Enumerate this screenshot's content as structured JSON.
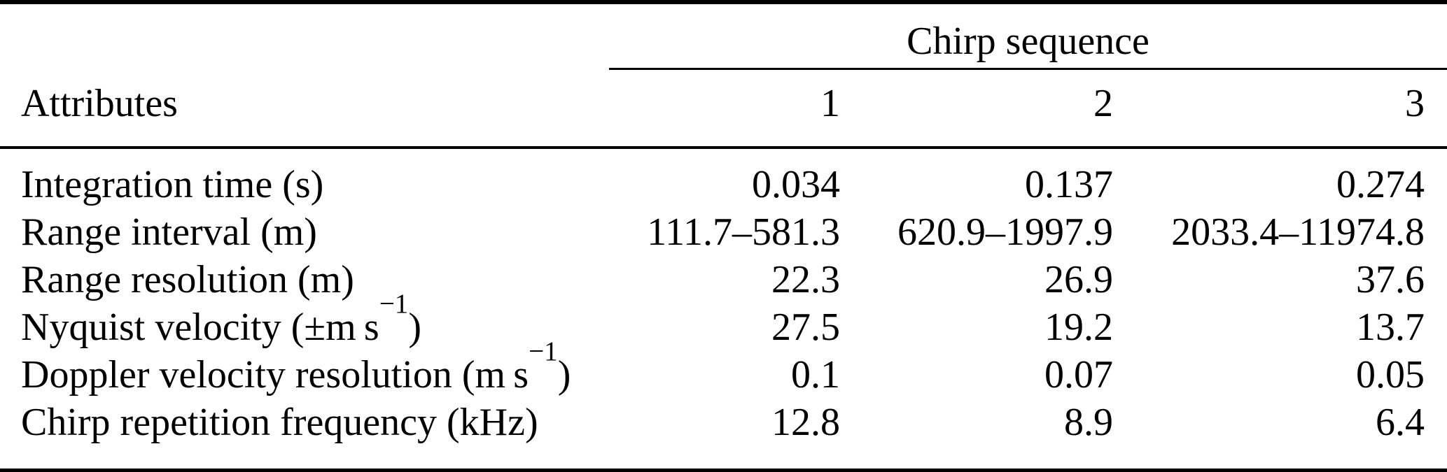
{
  "table": {
    "group_header": "Chirp sequence",
    "corner_header": "Attributes",
    "columns": [
      "1",
      "2",
      "3"
    ],
    "rows": [
      {
        "label_pre": "Integration time (s)",
        "label_sup": "",
        "label_post": "",
        "values": [
          "0.034",
          "0.137",
          "0.274"
        ]
      },
      {
        "label_pre": "Range interval (m)",
        "label_sup": "",
        "label_post": "",
        "values": [
          "111.7–581.3",
          "620.9–1997.9",
          "2033.4–11974.8"
        ]
      },
      {
        "label_pre": "Range resolution (m)",
        "label_sup": "",
        "label_post": "",
        "values": [
          "22.3",
          "26.9",
          "37.6"
        ]
      },
      {
        "label_pre": "Nyquist velocity (±m s",
        "label_sup": "−1",
        "label_post": ")",
        "values": [
          "27.5",
          "19.2",
          "13.7"
        ]
      },
      {
        "label_pre": "Doppler velocity resolution (m s",
        "label_sup": "−1",
        "label_post": ")",
        "values": [
          "0.1",
          "0.07",
          "0.05"
        ]
      },
      {
        "label_pre": "Chirp repetition frequency (kHz)",
        "label_sup": "",
        "label_post": "",
        "values": [
          "12.8",
          "8.9",
          "6.4"
        ]
      }
    ],
    "colors": {
      "text": "#000000",
      "background": "#ffffff",
      "rule": "#000000"
    }
  }
}
